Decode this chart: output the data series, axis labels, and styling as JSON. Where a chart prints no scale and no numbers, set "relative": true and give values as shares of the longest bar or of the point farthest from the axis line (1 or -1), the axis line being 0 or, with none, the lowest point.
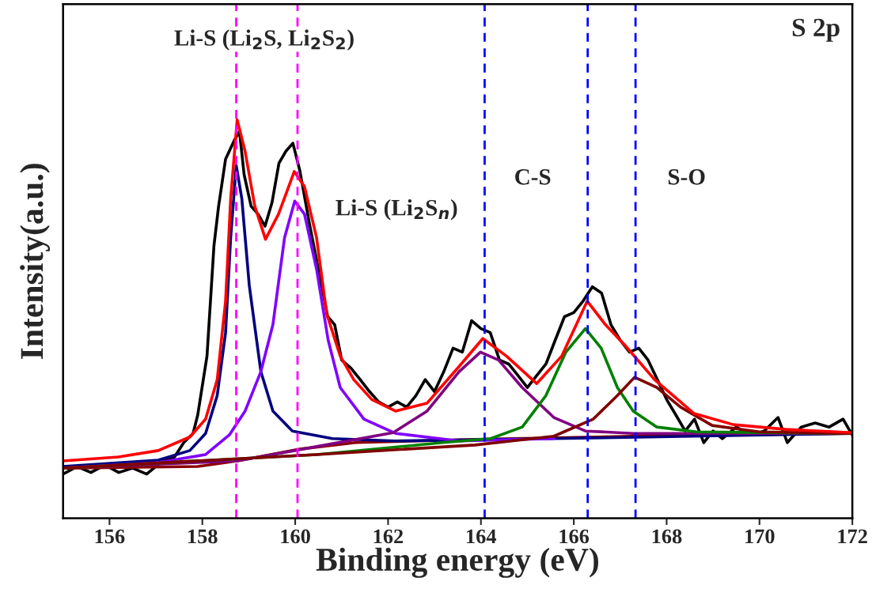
{
  "chart_data": {
    "type": "line",
    "relative": true,
    "xlabel": "Binding energy (eV)",
    "ylabel": "Intensity(a.u.)",
    "xlim": [
      155,
      172
    ],
    "xticks": [
      156,
      158,
      160,
      162,
      164,
      166,
      168,
      170,
      172
    ],
    "tick_labels": "x",
    "grid": false,
    "legend": false,
    "marker": "none",
    "line_style": "solid",
    "annotations": [
      "S 2p",
      "Li-S (Li$_{2}$S, Li$_{2}$S$_{2}$)",
      "Li-S (Li$_{2}$S$_{n}$)",
      "C-S",
      "S-O"
    ],
    "ref_lines": [
      {
        "axis": "x",
        "value": 158.73,
        "color": "#ff00ff",
        "line_style": "dashed"
      },
      {
        "axis": "x",
        "value": 160.05,
        "color": "#ff00ff",
        "line_style": "dashed"
      },
      {
        "axis": "x",
        "value": 164.08,
        "color": "#0000ff",
        "line_style": "dashed"
      },
      {
        "axis": "x",
        "value": 166.3,
        "color": "#0000ff",
        "line_style": "dashed"
      },
      {
        "axis": "x",
        "value": 167.33,
        "color": "#0000ff",
        "line_style": "dashed"
      }
    ],
    "series": [
      {
        "color": "#000000",
        "x": [
          155.0,
          155.3,
          155.6,
          155.9,
          156.2,
          156.5,
          156.8,
          157.1,
          157.4,
          157.6,
          157.8,
          157.9,
          158.1,
          158.25,
          158.35,
          158.5,
          158.7,
          158.8,
          158.9,
          159.05,
          159.2,
          159.35,
          159.5,
          159.65,
          159.8,
          159.95,
          160.1,
          160.3,
          160.5,
          160.7,
          160.85,
          161.0,
          161.2,
          161.4,
          161.6,
          161.8,
          162.0,
          162.2,
          162.4,
          162.6,
          162.8,
          163.0,
          163.2,
          163.4,
          163.6,
          163.8,
          164.0,
          164.2,
          164.4,
          164.6,
          164.8,
          165.0,
          165.2,
          165.4,
          165.6,
          165.8,
          166.0,
          166.2,
          166.4,
          166.6,
          166.8,
          167.0,
          167.2,
          167.4,
          167.6,
          167.8,
          168.0,
          168.2,
          168.4,
          168.6,
          168.8,
          169.0,
          169.2,
          169.5,
          169.8,
          170.1,
          170.4,
          170.6,
          170.9,
          171.2,
          171.5,
          171.8,
          172.0
        ],
        "values": [
          0.111,
          0.13,
          0.115,
          0.134,
          0.115,
          0.126,
          0.111,
          0.14,
          0.154,
          0.19,
          0.213,
          0.259,
          0.407,
          0.684,
          0.783,
          0.901,
          0.951,
          0.97,
          0.862,
          0.783,
          0.763,
          0.733,
          0.792,
          0.891,
          0.921,
          0.941,
          0.872,
          0.743,
          0.625,
          0.506,
          0.486,
          0.397,
          0.377,
          0.348,
          0.318,
          0.292,
          0.279,
          0.292,
          0.279,
          0.308,
          0.348,
          0.318,
          0.368,
          0.427,
          0.417,
          0.496,
          0.476,
          0.466,
          0.397,
          0.387,
          0.358,
          0.328,
          0.358,
          0.387,
          0.447,
          0.506,
          0.516,
          0.545,
          0.581,
          0.565,
          0.486,
          0.447,
          0.417,
          0.427,
          0.397,
          0.348,
          0.298,
          0.259,
          0.219,
          0.249,
          0.19,
          0.219,
          0.2,
          0.229,
          0.209,
          0.219,
          0.253,
          0.19,
          0.229,
          0.239,
          0.229,
          0.249,
          0.209
        ]
      },
      {
        "color": "#8b0000",
        "x": [
          155.0,
          157.9,
          158.75,
          160.12,
          161.31,
          163.87,
          167.28,
          172.0
        ],
        "values": [
          0.126,
          0.13,
          0.144,
          0.174,
          0.19,
          0.198,
          0.206,
          0.213
        ]
      },
      {
        "color": "#000080",
        "x": [
          155.0,
          157.05,
          157.73,
          158.07,
          158.32,
          158.5,
          158.61,
          158.73,
          158.85,
          159.01,
          159.26,
          159.52,
          159.94,
          160.8,
          162.16,
          165.57,
          172.0
        ],
        "values": [
          0.13,
          0.146,
          0.17,
          0.213,
          0.308,
          0.466,
          0.704,
          0.885,
          0.802,
          0.585,
          0.368,
          0.269,
          0.219,
          0.2,
          0.194,
          0.2,
          0.213
        ]
      },
      {
        "color": "#8000ff",
        "x": [
          155.0,
          157.05,
          158.07,
          158.58,
          158.92,
          159.26,
          159.52,
          159.77,
          159.99,
          160.2,
          160.46,
          160.71,
          160.97,
          161.48,
          162.16,
          163.53,
          165.57
        ],
        "values": [
          0.126,
          0.14,
          0.16,
          0.209,
          0.269,
          0.368,
          0.486,
          0.704,
          0.796,
          0.763,
          0.625,
          0.447,
          0.328,
          0.249,
          0.213,
          0.194,
          0.2
        ]
      },
      {
        "color": "#800080",
        "x": [
          155.0,
          158.75,
          160.46,
          162.11,
          162.84,
          163.53,
          163.99,
          164.38,
          164.89,
          165.57,
          166.25,
          167.28,
          172.0
        ],
        "values": [
          0.126,
          0.144,
          0.18,
          0.215,
          0.269,
          0.368,
          0.417,
          0.397,
          0.328,
          0.253,
          0.219,
          0.213,
          0.213
        ]
      },
      {
        "color": "#008000",
        "x": [
          155.0,
          160.46,
          163.18,
          164.21,
          164.89,
          165.4,
          165.83,
          166.25,
          166.59,
          166.94,
          167.28,
          167.79,
          168.64,
          172.0
        ],
        "values": [
          0.126,
          0.16,
          0.19,
          0.2,
          0.229,
          0.308,
          0.417,
          0.476,
          0.427,
          0.328,
          0.269,
          0.229,
          0.217,
          0.213
        ]
      },
      {
        "color": "#800000",
        "x": [
          155.0,
          160.46,
          163.87,
          165.57,
          166.42,
          166.94,
          167.31,
          167.79,
          168.3,
          168.98,
          170.0,
          172.0
        ],
        "values": [
          0.126,
          0.16,
          0.184,
          0.206,
          0.249,
          0.308,
          0.354,
          0.328,
          0.279,
          0.233,
          0.217,
          0.213
        ]
      },
      {
        "color": "#ff0000",
        "x": [
          155.0,
          156.19,
          157.05,
          157.73,
          158.07,
          158.32,
          158.5,
          158.61,
          158.75,
          158.92,
          159.13,
          159.36,
          159.64,
          159.98,
          160.2,
          160.46,
          160.68,
          160.97,
          161.26,
          161.65,
          162.16,
          162.84,
          163.53,
          164.04,
          164.55,
          165.2,
          165.74,
          166.29,
          166.68,
          167.11,
          167.74,
          168.59,
          169.44,
          170.57,
          172.0
        ],
        "values": [
          0.144,
          0.154,
          0.17,
          0.204,
          0.249,
          0.348,
          0.545,
          0.802,
          1.0,
          0.921,
          0.783,
          0.7,
          0.763,
          0.87,
          0.832,
          0.704,
          0.512,
          0.407,
          0.348,
          0.298,
          0.269,
          0.289,
          0.381,
          0.451,
          0.407,
          0.338,
          0.407,
          0.545,
          0.486,
          0.433,
          0.348,
          0.263,
          0.235,
          0.223,
          0.215
        ]
      }
    ]
  }
}
